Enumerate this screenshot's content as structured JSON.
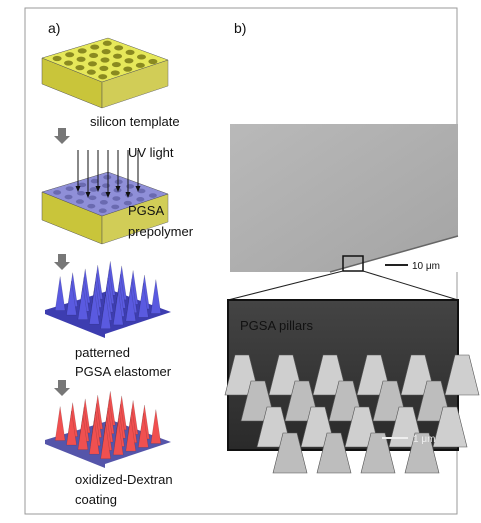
{
  "panel_a": {
    "label": "a)",
    "steps": [
      {
        "label": "silicon template"
      },
      {
        "label": "UV light",
        "material": [
          "PGSA",
          "prepolymer"
        ]
      },
      {
        "label": [
          "patterned",
          "PGSA elastomer"
        ]
      },
      {
        "label": [
          "oxidized-Dextran",
          "coating"
        ]
      }
    ]
  },
  "panel_b": {
    "label": "b)",
    "overview_scale": "10 μm",
    "inset_title": "PGSA pillars",
    "inset_scale": "1 μm"
  }
}
